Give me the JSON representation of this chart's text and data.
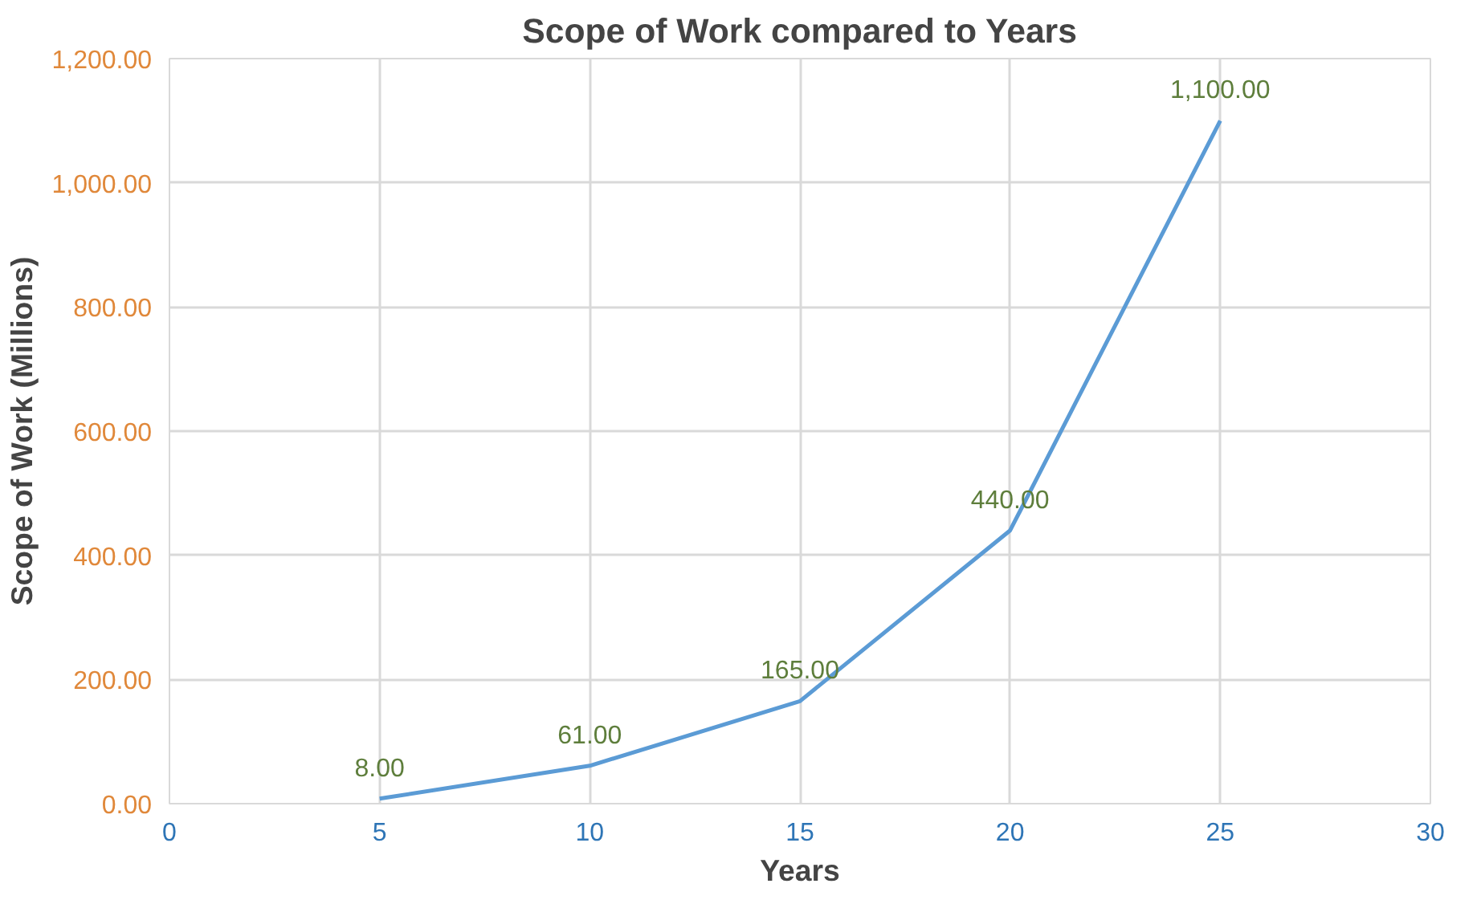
{
  "chart_data": {
    "type": "line",
    "title": "Scope of Work compared to Years",
    "xlabel": "Years",
    "ylabel": "Scope of Work (Millions)",
    "x": [
      5,
      10,
      15,
      20,
      25
    ],
    "series": [
      {
        "color": "#5b9bd5",
        "values": [
          8,
          61,
          165,
          440,
          1100
        ],
        "value_labels": [
          "8.00",
          "61.00",
          "165.00",
          "440.00",
          "1,100.00"
        ]
      }
    ],
    "xlim": [
      0,
      30
    ],
    "xticks": [
      0,
      5,
      10,
      15,
      20,
      25,
      30
    ],
    "ylim": [
      0,
      1200
    ],
    "yticks": [
      {
        "value": 0,
        "label": "0.00"
      },
      {
        "value": 200,
        "label": "200.00"
      },
      {
        "value": 400,
        "label": "400.00"
      },
      {
        "value": 600,
        "label": "600.00"
      },
      {
        "value": 800,
        "label": "800.00"
      },
      {
        "value": 1000,
        "label": "1,000.00"
      },
      {
        "value": 1200,
        "label": "1,200.00"
      }
    ],
    "grid": true,
    "marker": "none",
    "line_style": "solid"
  }
}
